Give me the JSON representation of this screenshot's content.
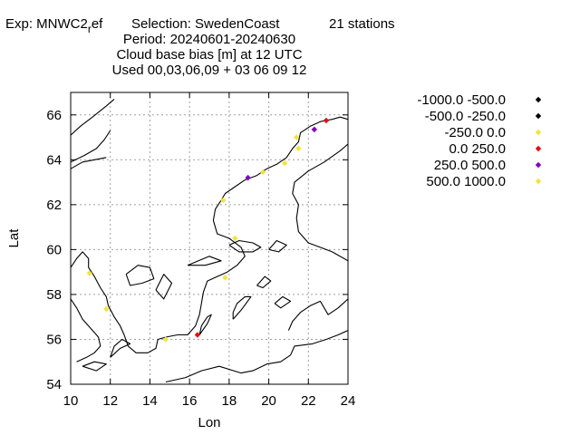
{
  "title": {
    "exp_prefix": "Exp: MNWC2",
    "exp_sub": "r",
    "exp_suffix": "ef",
    "selection": "Selection: SwedenCoast",
    "stations": "21 stations",
    "period": "Period: 20240601-20240630",
    "quantity": "Cloud base bias [m] at  12 UTC",
    "used": "Used 00,03,06,09 + 03 06 09 12"
  },
  "chart_data": {
    "type": "scatter",
    "xlabel": "Lon",
    "ylabel": "Lat",
    "xlim": [
      10,
      24
    ],
    "ylim": [
      54,
      67
    ],
    "xticks": [
      10,
      12,
      14,
      16,
      18,
      20,
      22,
      24
    ],
    "yticks": [
      54,
      56,
      58,
      60,
      62,
      64,
      66
    ],
    "grid": true,
    "legend_position": "right",
    "legend": [
      {
        "label": "-1000.0 -500.0",
        "color": "#000000"
      },
      {
        "label": "-500.0 -250.0",
        "color": "#000000"
      },
      {
        "label": "-250.0 0.0",
        "color": "#f0e442"
      },
      {
        "label": "0.0 250.0",
        "color": "#e01010"
      },
      {
        "label": "250.0 500.0",
        "color": "#8000c0"
      },
      {
        "label": "500.0 1000.0",
        "color": "#f0e442"
      }
    ],
    "points": [
      {
        "lon": 22.9,
        "lat": 65.75,
        "class": 3
      },
      {
        "lon": 22.3,
        "lat": 65.35,
        "class": 4
      },
      {
        "lon": 21.4,
        "lat": 65.0,
        "class": 2
      },
      {
        "lon": 21.5,
        "lat": 64.5,
        "class": 2
      },
      {
        "lon": 20.8,
        "lat": 63.85,
        "class": 2
      },
      {
        "lon": 19.7,
        "lat": 63.45,
        "class": 2
      },
      {
        "lon": 18.95,
        "lat": 63.2,
        "class": 4
      },
      {
        "lon": 17.7,
        "lat": 62.2,
        "class": 2
      },
      {
        "lon": 18.3,
        "lat": 60.5,
        "class": 2
      },
      {
        "lon": 17.8,
        "lat": 58.75,
        "class": 2
      },
      {
        "lon": 10.95,
        "lat": 58.95,
        "class": 2
      },
      {
        "lon": 11.8,
        "lat": 57.35,
        "class": 2
      },
      {
        "lon": 14.8,
        "lat": 56.0,
        "class": 2
      },
      {
        "lon": 16.4,
        "lat": 56.2,
        "class": 3
      }
    ],
    "coastlines": [
      [
        [
          10.0,
          65.1
        ],
        [
          10.5,
          65.5
        ],
        [
          11.1,
          65.9
        ],
        [
          11.8,
          66.4
        ],
        [
          12.2,
          66.7
        ]
      ],
      [
        [
          10.0,
          63.9
        ],
        [
          10.7,
          64.2
        ],
        [
          11.3,
          64.5
        ],
        [
          11.7,
          64.9
        ],
        [
          12.0,
          65.3
        ]
      ],
      [
        [
          10.0,
          63.6
        ],
        [
          10.6,
          63.9
        ],
        [
          11.2,
          64.0
        ],
        [
          11.8,
          64.1
        ]
      ],
      [
        [
          10.3,
          55.0
        ],
        [
          10.8,
          55.2
        ],
        [
          11.2,
          55.4
        ],
        [
          11.5,
          55.7
        ],
        [
          11.4,
          56.1
        ],
        [
          11.0,
          56.5
        ],
        [
          10.6,
          56.9
        ],
        [
          10.3,
          57.4
        ],
        [
          10.0,
          57.8
        ]
      ],
      [
        [
          10.0,
          59.2
        ],
        [
          10.3,
          59.6
        ],
        [
          10.6,
          59.9
        ],
        [
          10.9,
          59.6
        ],
        [
          10.9,
          59.2
        ],
        [
          11.2,
          58.8
        ],
        [
          11.5,
          58.3
        ],
        [
          11.8,
          57.9
        ],
        [
          11.9,
          57.5
        ],
        [
          12.2,
          57.0
        ],
        [
          12.5,
          56.6
        ],
        [
          12.7,
          56.2
        ],
        [
          12.9,
          55.7
        ],
        [
          13.3,
          55.4
        ],
        [
          13.9,
          55.4
        ],
        [
          14.3,
          55.6
        ],
        [
          14.4,
          56.0
        ],
        [
          14.8,
          56.1
        ],
        [
          15.4,
          56.2
        ],
        [
          15.9,
          56.2
        ],
        [
          16.3,
          56.6
        ],
        [
          16.5,
          57.1
        ],
        [
          16.6,
          57.6
        ],
        [
          16.7,
          58.1
        ],
        [
          16.9,
          58.6
        ],
        [
          17.4,
          58.8
        ],
        [
          17.9,
          59.0
        ],
        [
          18.4,
          59.3
        ],
        [
          18.8,
          59.7
        ],
        [
          18.6,
          60.1
        ],
        [
          18.0,
          60.5
        ],
        [
          17.4,
          60.7
        ],
        [
          17.2,
          61.3
        ],
        [
          17.3,
          61.8
        ],
        [
          17.6,
          62.2
        ],
        [
          17.8,
          62.5
        ],
        [
          18.3,
          62.8
        ],
        [
          18.8,
          63.1
        ],
        [
          19.4,
          63.3
        ],
        [
          19.9,
          63.6
        ],
        [
          20.4,
          63.8
        ],
        [
          20.9,
          64.1
        ],
        [
          21.2,
          64.5
        ],
        [
          21.5,
          64.8
        ],
        [
          21.6,
          65.2
        ],
        [
          22.1,
          65.5
        ],
        [
          22.6,
          65.7
        ],
        [
          23.2,
          65.8
        ],
        [
          23.6,
          65.9
        ],
        [
          24.0,
          65.8
        ]
      ],
      [
        [
          16.5,
          56.2
        ],
        [
          16.9,
          56.7
        ],
        [
          17.1,
          57.1
        ],
        [
          16.9,
          57.0
        ],
        [
          16.6,
          56.6
        ],
        [
          16.5,
          56.2
        ]
      ],
      [
        [
          18.2,
          56.9
        ],
        [
          18.6,
          57.3
        ],
        [
          19.1,
          57.9
        ],
        [
          18.8,
          57.9
        ],
        [
          18.4,
          57.6
        ],
        [
          18.2,
          57.2
        ],
        [
          18.2,
          56.9
        ]
      ],
      [
        [
          24.0,
          56.4
        ],
        [
          23.5,
          56.2
        ],
        [
          22.9,
          56.0
        ],
        [
          22.2,
          55.8
        ],
        [
          21.3,
          55.7
        ],
        [
          21.1,
          55.3
        ],
        [
          20.6,
          55.0
        ],
        [
          19.9,
          54.9
        ],
        [
          19.2,
          54.6
        ],
        [
          18.6,
          54.5
        ],
        [
          17.5,
          54.8
        ],
        [
          16.6,
          54.6
        ],
        [
          15.8,
          54.3
        ],
        [
          14.8,
          54.1
        ]
      ],
      [
        [
          24.0,
          57.8
        ],
        [
          23.5,
          57.4
        ],
        [
          23.0,
          57.1
        ],
        [
          22.6,
          57.7
        ],
        [
          22.1,
          57.5
        ],
        [
          21.6,
          57.2
        ],
        [
          21.2,
          56.8
        ],
        [
          21.0,
          56.4
        ]
      ],
      [
        [
          24.0,
          59.5
        ],
        [
          23.2,
          59.9
        ],
        [
          22.6,
          60.1
        ],
        [
          22.0,
          60.3
        ],
        [
          21.5,
          60.8
        ],
        [
          21.4,
          61.4
        ],
        [
          21.5,
          62.0
        ],
        [
          21.2,
          62.5
        ],
        [
          21.3,
          63.0
        ],
        [
          22.0,
          63.5
        ],
        [
          22.8,
          63.9
        ],
        [
          23.6,
          64.4
        ],
        [
          24.0,
          64.7
        ]
      ],
      [
        [
          18.0,
          60.2
        ],
        [
          18.5,
          60.4
        ],
        [
          19.2,
          60.3
        ],
        [
          19.6,
          60.1
        ],
        [
          19.2,
          59.9
        ],
        [
          18.5,
          59.9
        ],
        [
          18.0,
          60.2
        ]
      ],
      [
        [
          20.0,
          60.0
        ],
        [
          20.4,
          60.4
        ],
        [
          20.9,
          60.2
        ],
        [
          20.5,
          59.9
        ],
        [
          20.0,
          60.0
        ]
      ],
      [
        [
          12.8,
          58.9
        ],
        [
          13.4,
          59.3
        ],
        [
          14.0,
          59.2
        ],
        [
          14.2,
          58.7
        ],
        [
          13.6,
          58.5
        ],
        [
          13.0,
          58.4
        ],
        [
          12.8,
          58.9
        ]
      ],
      [
        [
          14.3,
          58.2
        ],
        [
          14.7,
          58.9
        ],
        [
          15.1,
          58.5
        ],
        [
          14.7,
          57.8
        ],
        [
          14.3,
          58.2
        ]
      ],
      [
        [
          15.9,
          59.3
        ],
        [
          17.0,
          59.7
        ],
        [
          17.6,
          59.5
        ],
        [
          16.8,
          59.3
        ],
        [
          15.9,
          59.3
        ]
      ],
      [
        [
          20.3,
          57.6
        ],
        [
          20.7,
          57.9
        ],
        [
          21.1,
          57.7
        ],
        [
          20.6,
          57.4
        ],
        [
          20.3,
          57.6
        ]
      ],
      [
        [
          19.4,
          58.4
        ],
        [
          19.8,
          58.8
        ],
        [
          20.1,
          58.6
        ],
        [
          19.7,
          58.3
        ],
        [
          19.4,
          58.4
        ]
      ],
      [
        [
          12.0,
          55.2
        ],
        [
          12.5,
          55.6
        ],
        [
          13.0,
          55.8
        ],
        [
          12.6,
          56.0
        ],
        [
          12.2,
          55.7
        ],
        [
          12.0,
          55.2
        ]
      ],
      [
        [
          10.6,
          54.8
        ],
        [
          11.2,
          55.0
        ],
        [
          11.8,
          54.9
        ],
        [
          11.3,
          54.6
        ],
        [
          10.6,
          54.8
        ]
      ]
    ]
  }
}
